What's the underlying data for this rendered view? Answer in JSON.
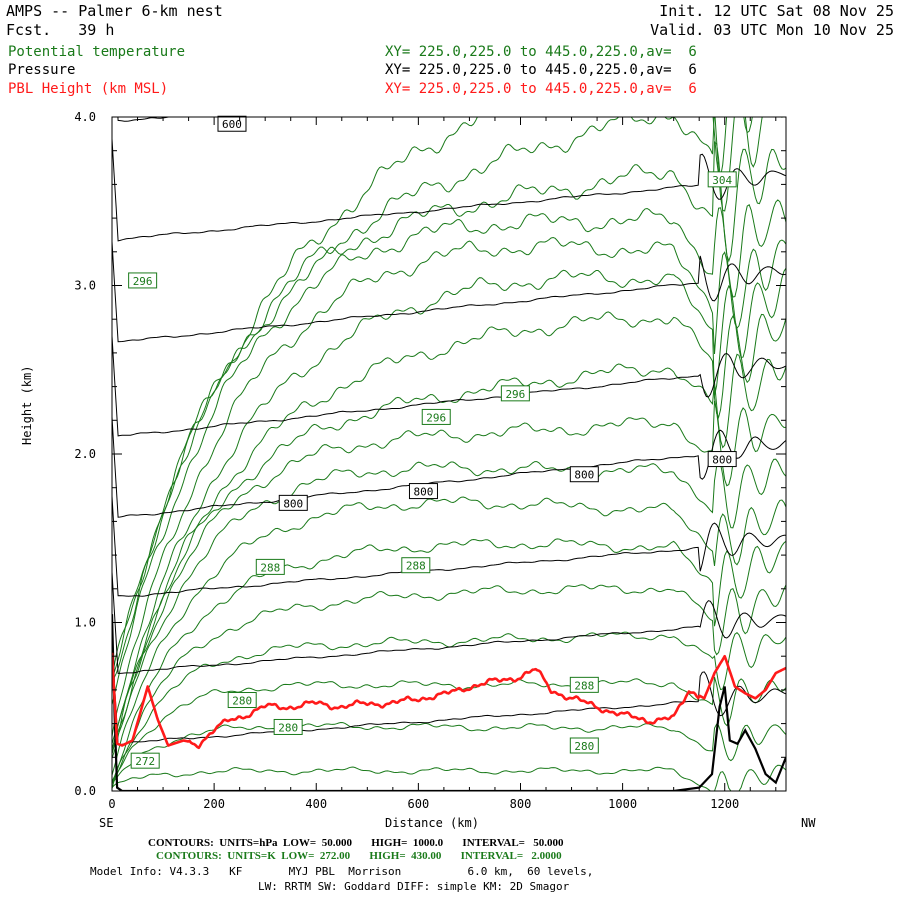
{
  "header": {
    "model_line": "AMPS -- Palmer 6-km nest",
    "fcst_line": "Fcst.   39 h",
    "init_line": "Init. 12 UTC Sat 08 Nov 25",
    "valid_line": "Valid. 03 UTC Mon 10 Nov 25"
  },
  "fields": [
    {
      "name": "Potential temperature",
      "xy": "XY= 225.0,225.0 to 445.0,225.0,av=  6",
      "color": "#1a7a1a"
    },
    {
      "name": "Pressure",
      "xy": "XY= 225.0,225.0 to 445.0,225.0,av=  6",
      "color": "#000000"
    },
    {
      "name": "PBL Height (km MSL)",
      "xy": "XY= 225.0,225.0 to 445.0,225.0,av=  6",
      "color": "#ff1a1a"
    }
  ],
  "chart_data": {
    "type": "line",
    "xlabel": "Distance (km)",
    "ylabel": "Height (km)",
    "xlim": [
      0,
      1320
    ],
    "ylim": [
      0,
      4
    ],
    "x_ticks": [
      "0",
      "200",
      "400",
      "600",
      "800",
      "1000",
      "1200"
    ],
    "y_ticks": [
      "0.0",
      "1.0",
      "2.0",
      "3.0",
      "4.0"
    ],
    "x_end_labels": {
      "left": "SE",
      "right": "NW"
    },
    "pressure_contours_hPa": [
      {
        "label": "600",
        "y0": 3.98,
        "y1": 4.15
      },
      {
        "label": "",
        "y0": 3.27,
        "y1": 3.58
      },
      {
        "label": "",
        "y0": 2.66,
        "y1": 3.0
      },
      {
        "label": "",
        "y0": 2.1,
        "y1": 2.45
      },
      {
        "label": "800",
        "y0": 1.62,
        "y1": 1.98
      },
      {
        "label": "",
        "y0": 1.15,
        "y1": 1.43
      },
      {
        "label": "",
        "y0": 0.7,
        "y1": 0.96
      },
      {
        "label": "",
        "y0": 0.28,
        "y1": 0.52
      }
    ],
    "theta_contours_K": [
      272,
      274,
      276,
      278,
      280,
      282,
      284,
      286,
      288,
      290,
      292,
      294,
      296,
      298,
      300,
      302,
      304
    ],
    "theta_labels": [
      {
        "label": "600",
        "x": 235,
        "y": 3.96,
        "kind": "pressure"
      },
      {
        "label": "304",
        "x": 1195,
        "y": 3.63,
        "kind": "theta"
      },
      {
        "label": "296",
        "x": 60,
        "y": 3.03,
        "kind": "theta"
      },
      {
        "label": "296",
        "x": 790,
        "y": 2.36,
        "kind": "theta"
      },
      {
        "label": "296",
        "x": 635,
        "y": 2.22,
        "kind": "theta"
      },
      {
        "label": "800",
        "x": 1195,
        "y": 1.97,
        "kind": "pressure"
      },
      {
        "label": "800",
        "x": 925,
        "y": 1.88,
        "kind": "pressure"
      },
      {
        "label": "800",
        "x": 610,
        "y": 1.78,
        "kind": "pressure"
      },
      {
        "label": "800",
        "x": 355,
        "y": 1.71,
        "kind": "pressure"
      },
      {
        "label": "288",
        "x": 310,
        "y": 1.33,
        "kind": "theta"
      },
      {
        "label": "288",
        "x": 595,
        "y": 1.34,
        "kind": "theta"
      },
      {
        "label": "288",
        "x": 925,
        "y": 0.63,
        "kind": "theta"
      },
      {
        "label": "280",
        "x": 255,
        "y": 0.54,
        "kind": "theta"
      },
      {
        "label": "280",
        "x": 345,
        "y": 0.38,
        "kind": "theta"
      },
      {
        "label": "280",
        "x": 925,
        "y": 0.27,
        "kind": "theta"
      },
      {
        "label": "272",
        "x": 65,
        "y": 0.18,
        "kind": "theta"
      }
    ],
    "pbl_height_km": {
      "x": [
        0,
        10,
        20,
        40,
        70,
        90,
        110,
        140,
        170,
        200,
        230,
        260,
        300,
        350,
        400,
        450,
        500,
        550,
        600,
        650,
        700,
        750,
        800,
        830,
        860,
        900,
        950,
        1000,
        1050,
        1100,
        1130,
        1160,
        1180,
        1200,
        1220,
        1240,
        1260,
        1280,
        1300,
        1320
      ],
      "y": [
        0.82,
        0.28,
        0.27,
        0.3,
        0.62,
        0.42,
        0.27,
        0.3,
        0.28,
        0.36,
        0.42,
        0.45,
        0.5,
        0.5,
        0.52,
        0.5,
        0.52,
        0.52,
        0.55,
        0.57,
        0.62,
        0.65,
        0.68,
        0.72,
        0.6,
        0.55,
        0.5,
        0.45,
        0.42,
        0.43,
        0.6,
        0.55,
        0.7,
        0.8,
        0.62,
        0.58,
        0.55,
        0.6,
        0.7,
        0.73
      ]
    },
    "terrain_km": {
      "x": [
        0,
        5,
        10,
        20,
        40,
        100,
        400,
        800,
        1100,
        1150,
        1175,
        1190,
        1200,
        1210,
        1225,
        1240,
        1260,
        1280,
        1300,
        1320
      ],
      "y": [
        1.05,
        0.45,
        0.02,
        0.0,
        0.0,
        0.0,
        0.0,
        0.0,
        0.0,
        0.02,
        0.1,
        0.5,
        0.62,
        0.3,
        0.28,
        0.36,
        0.25,
        0.1,
        0.05,
        0.2
      ]
    }
  },
  "footer": {
    "line1": "CONTOURS:  UNITS=hPa  LOW=  50.000       HIGH=  1000.0       INTERVAL=   50.000",
    "line2": "CONTOURS:  UNITS=K  LOW=  272.00       HIGH=  430.00       INTERVAL=   2.0000",
    "line3": "Model Info: V4.3.3   KF       MYJ PBL  Morrison          6.0 km,  60 levels,",
    "line4": "LW: RRTM SW: Goddard DIFF: simple KM: 2D Smagor"
  }
}
